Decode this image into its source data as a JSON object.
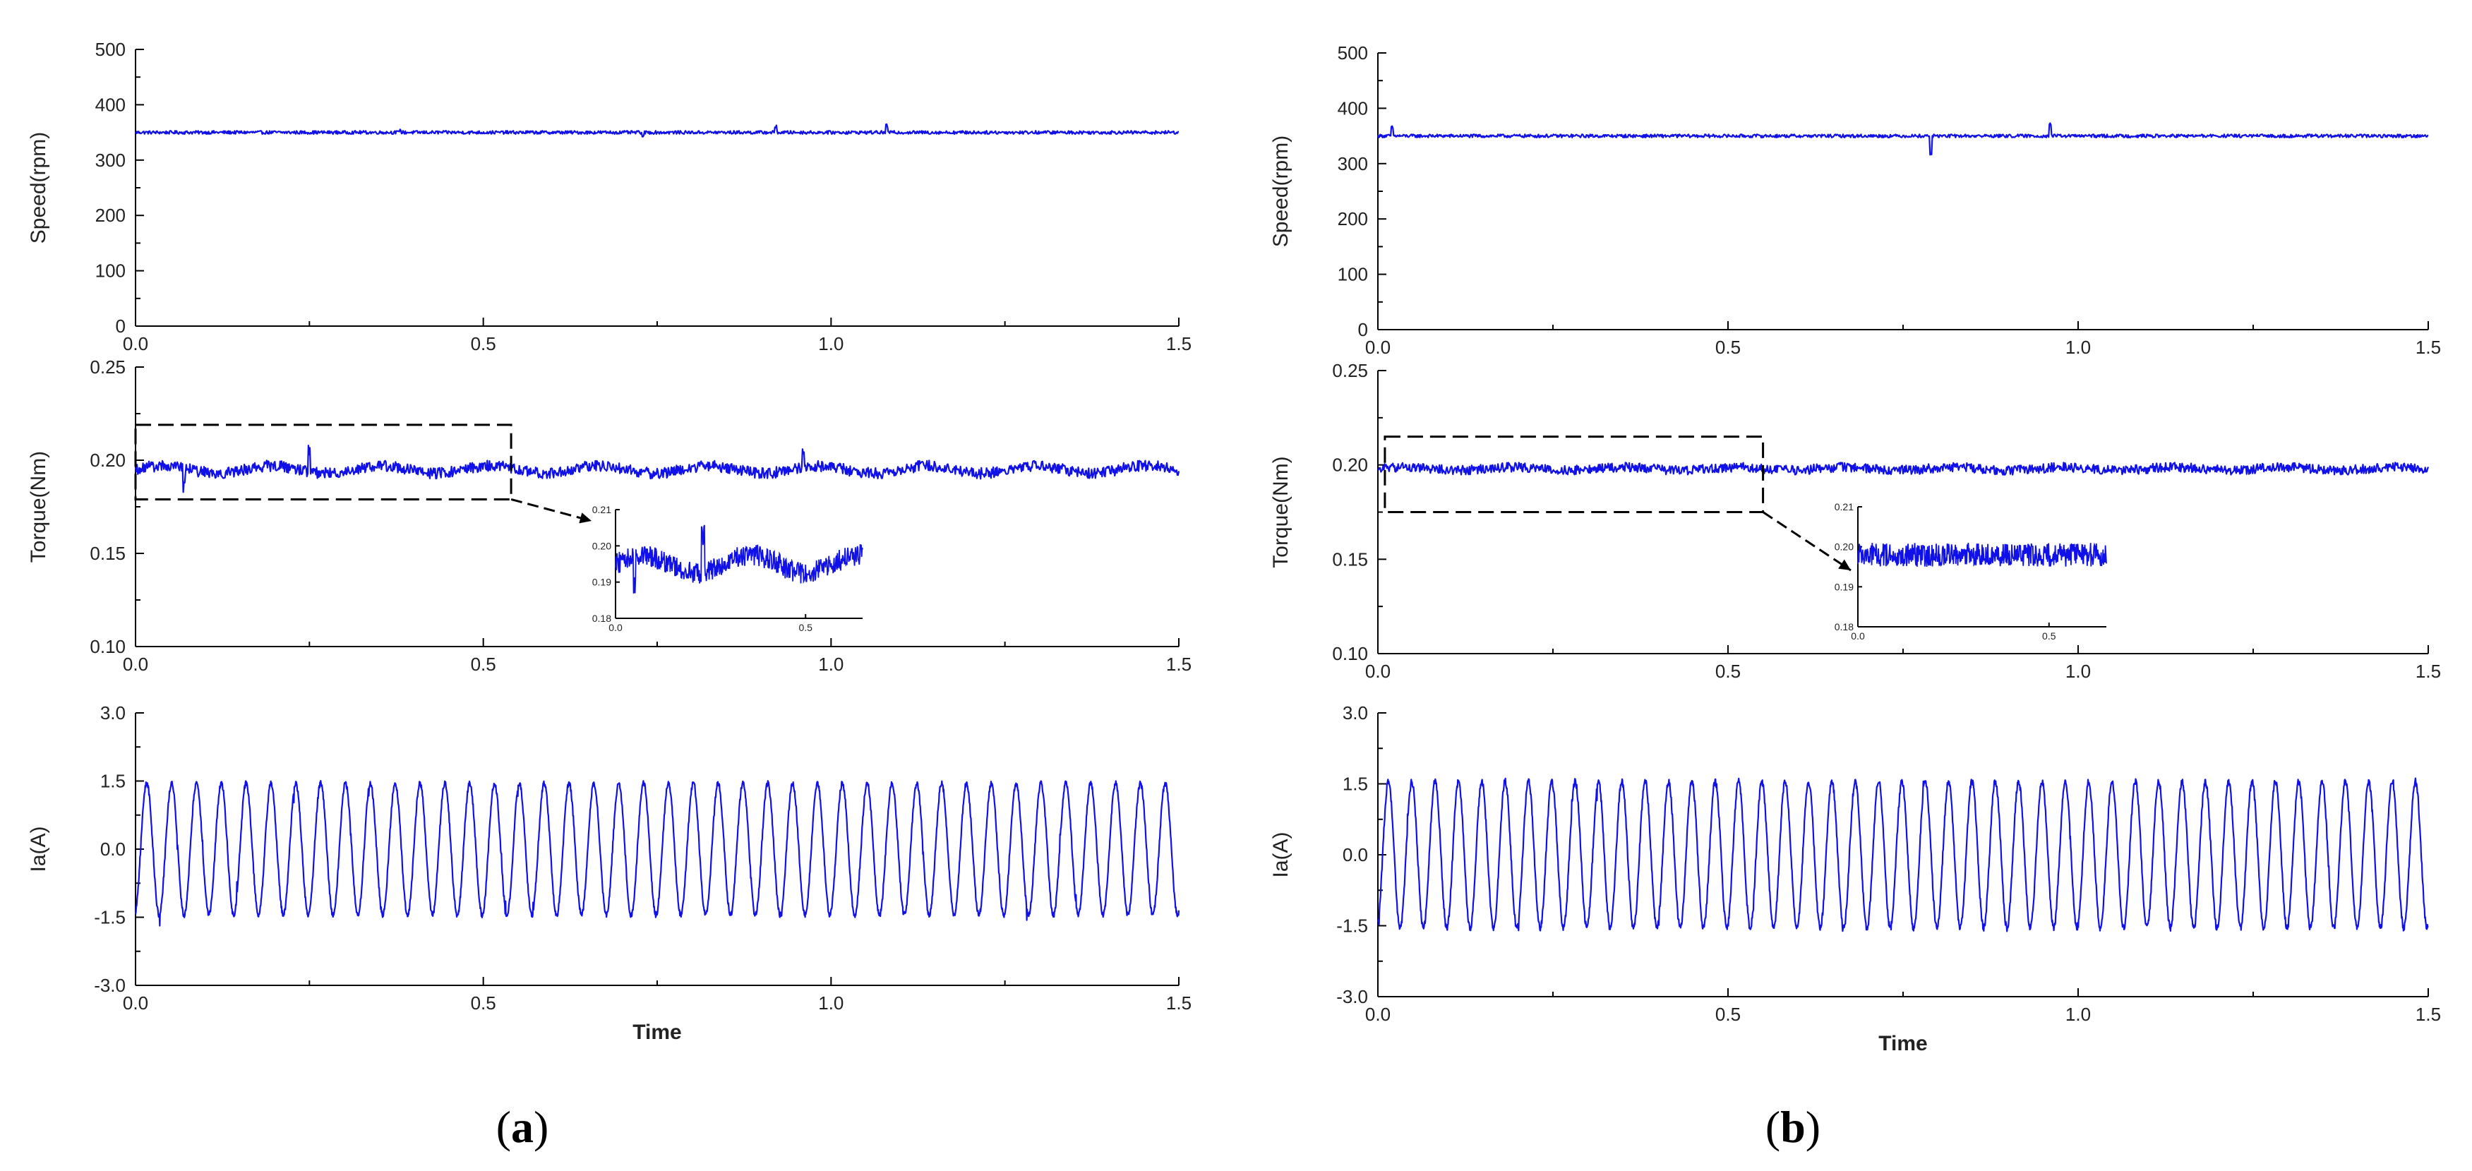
{
  "figure": {
    "panels": [
      {
        "label": "a",
        "label_prefix": "(",
        "label_suffix": ")",
        "chart_data": [
          {
            "type": "line",
            "name": "speed",
            "ylabel": "Speed(rpm)",
            "xlabel": "",
            "xlim": [
              0.0,
              1.5
            ],
            "ylim": [
              0,
              500
            ],
            "xticks": [
              "0.0",
              "0.5",
              "1.0",
              "1.5"
            ],
            "yticks": [
              "0",
              "100",
              "200",
              "300",
              "400",
              "500"
            ],
            "series": [
              {
                "name": "Speed",
                "mean": 350,
                "noise": 3,
                "spikes": [
                  [
                    0.38,
                    22
                  ],
                  [
                    0.38,
                    -18
                  ],
                  [
                    0.73,
                    -8
                  ],
                  [
                    0.92,
                    10
                  ],
                  [
                    1.08,
                    12
                  ]
                ]
              }
            ]
          },
          {
            "type": "line",
            "name": "torque",
            "ylabel": "Torque(Nm)",
            "xlabel": "",
            "xlim": [
              0.0,
              1.5
            ],
            "ylim": [
              0.1,
              0.25
            ],
            "xticks": [
              "0.0",
              "0.5",
              "1.0",
              "1.5"
            ],
            "yticks": [
              "0.10",
              "0.15",
              "0.20",
              "0.25"
            ],
            "series": [
              {
                "name": "Torque",
                "mean": 0.195,
                "noise": 0.003,
                "spikes": [
                  [
                    0.25,
                    0.012
                  ],
                  [
                    0.07,
                    -0.01
                  ],
                  [
                    0.96,
                    0.008
                  ]
                ]
              }
            ],
            "zoom_region": {
              "x": [
                0.0,
                0.54
              ],
              "y": [
                0.179,
                0.219
              ]
            },
            "inset": {
              "xlim": [
                0.0,
                0.65
              ],
              "ylim": [
                0.18,
                0.21
              ],
              "xticks": [
                "0.0",
                "0.5"
              ],
              "yticks": [
                "0.18",
                "0.19",
                "0.20",
                "0.21"
              ],
              "data_x": [
                0.0,
                0.65
              ],
              "mean": 0.195,
              "noise": 0.003
            }
          },
          {
            "type": "line",
            "name": "current",
            "ylabel": "Ia(A)",
            "xlabel": "Time",
            "xlim": [
              0.0,
              1.5
            ],
            "ylim": [
              -3.0,
              3.0
            ],
            "xticks": [
              "0.0",
              "0.5",
              "1.0",
              "1.5"
            ],
            "yticks": [
              "-3.0",
              "-1.5",
              "0.0",
              "1.5",
              "3.0"
            ],
            "series": [
              {
                "name": "Ia",
                "amplitude": 1.45,
                "cycles": 42,
                "offset": 0.0,
                "noise": 0.06
              }
            ]
          }
        ]
      },
      {
        "label": "b",
        "label_prefix": "(",
        "label_suffix": ")",
        "chart_data": [
          {
            "type": "line",
            "name": "speed",
            "ylabel": "Speed(rpm)",
            "xlabel": "",
            "xlim": [
              0.0,
              1.5
            ],
            "ylim": [
              0,
              500
            ],
            "xticks": [
              "0.0",
              "0.5",
              "1.0",
              "1.5"
            ],
            "yticks": [
              "0",
              "100",
              "200",
              "300",
              "400",
              "500"
            ],
            "series": [
              {
                "name": "Speed",
                "mean": 350,
                "noise": 3,
                "spikes": [
                  [
                    0.79,
                    -32
                  ],
                  [
                    0.96,
                    22
                  ],
                  [
                    0.02,
                    15
                  ]
                ]
              }
            ]
          },
          {
            "type": "line",
            "name": "torque",
            "ylabel": "Torque(Nm)",
            "xlabel": "",
            "xlim": [
              0.0,
              1.5
            ],
            "ylim": [
              0.1,
              0.25
            ],
            "xticks": [
              "0.0",
              "0.5",
              "1.0",
              "1.5"
            ],
            "yticks": [
              "0.10",
              "0.15",
              "0.20",
              "0.25"
            ],
            "series": [
              {
                "name": "Torque",
                "mean": 0.198,
                "noise": 0.0025,
                "spikes": []
              }
            ],
            "zoom_region": {
              "x": [
                0.01,
                0.55
              ],
              "y": [
                0.175,
                0.215
              ]
            },
            "inset": {
              "xlim": [
                0.0,
                0.65
              ],
              "ylim": [
                0.18,
                0.21
              ],
              "xticks": [
                "0.0",
                "0.5"
              ],
              "yticks": [
                "0.18",
                "0.19",
                "0.20",
                "0.21"
              ],
              "data_x": [
                0.0,
                0.65
              ],
              "mean": 0.198,
              "noise": 0.003
            }
          },
          {
            "type": "line",
            "name": "current",
            "ylabel": "Ia(A)",
            "xlabel": "Time",
            "xlim": [
              0.0,
              1.5
            ],
            "ylim": [
              -3.0,
              3.0
            ],
            "xticks": [
              "0.0",
              "0.5",
              "1.0",
              "1.5"
            ],
            "yticks": [
              "-3.0",
              "-1.5",
              "0.0",
              "1.5",
              "3.0"
            ],
            "series": [
              {
                "name": "Ia",
                "amplitude": 1.55,
                "cycles": 45,
                "offset": 0.0,
                "noise": 0.07
              }
            ]
          }
        ]
      }
    ],
    "colors": {
      "signal": "#1010e8",
      "axis": "#000000"
    }
  }
}
